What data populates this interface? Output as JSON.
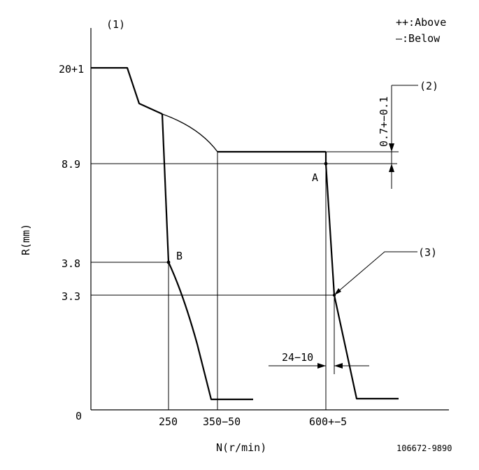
{
  "legend": {
    "above": "++:Above",
    "below": "—:Below"
  },
  "notes": {
    "n1": "(1)",
    "n2": "(2)",
    "n3": "(3)"
  },
  "axes": {
    "y_label": "R(mm)",
    "x_label": "N(r/min)",
    "y_ticks": [
      "20+1",
      "8.9",
      "3.8",
      "3.3",
      "0"
    ],
    "x_ticks": [
      "250",
      "350−50",
      "600+−5"
    ]
  },
  "points": {
    "a": "A",
    "b": "B"
  },
  "dimensions": {
    "vertical": "0.7+−0.1",
    "horizontal": "24−10"
  },
  "figure_id": "106672-9890"
}
